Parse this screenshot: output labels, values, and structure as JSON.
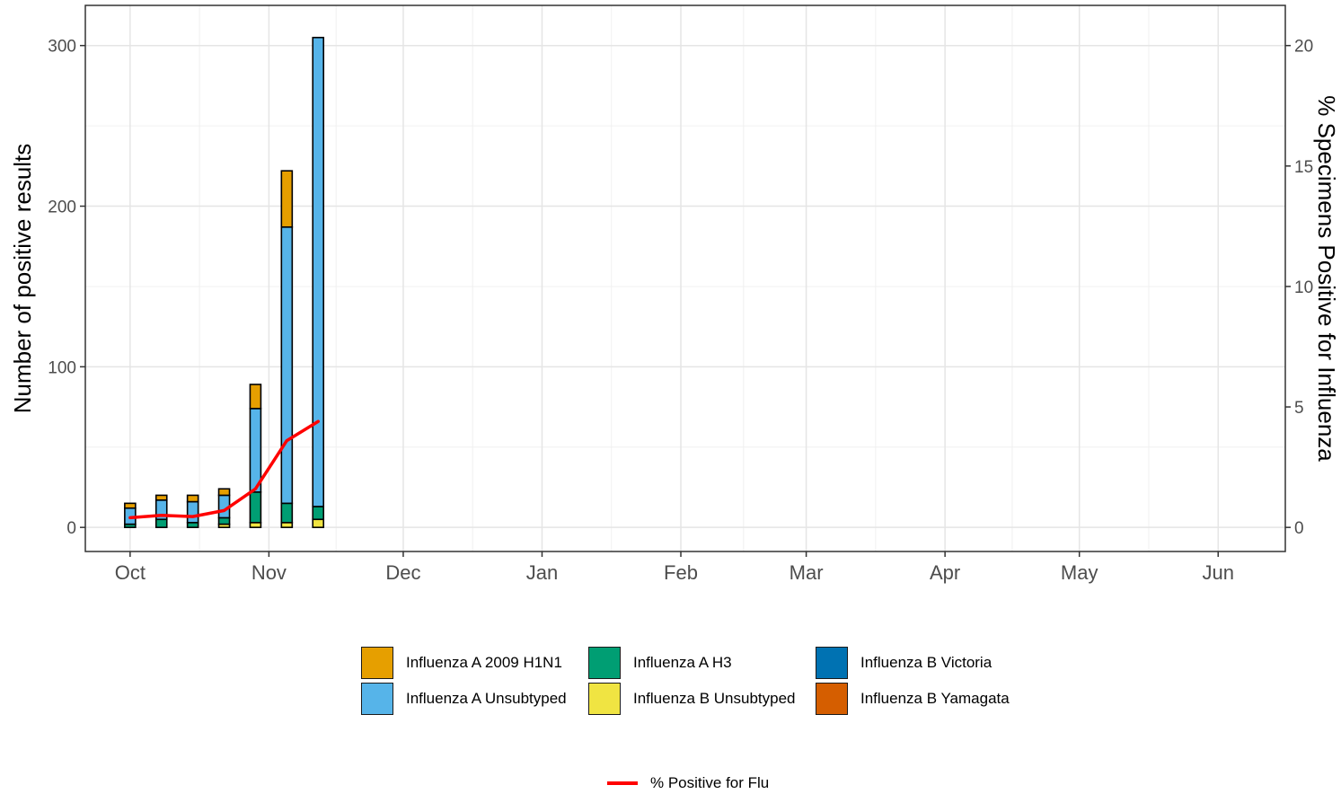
{
  "chart_data": {
    "type": "bar",
    "stacked": true,
    "ylabel": "Number of positive results",
    "y2label": "% Specimens Positive for Influenza",
    "ylim": [
      -15,
      325
    ],
    "y2lim": [
      -1,
      21.667
    ],
    "yticks": [
      0,
      100,
      200,
      300
    ],
    "y2ticks": [
      0,
      5,
      10,
      15,
      20
    ],
    "xlim": [
      -10,
      258
    ],
    "xticks": [
      {
        "label": "Oct",
        "day": 0
      },
      {
        "label": "Nov",
        "day": 31
      },
      {
        "label": "Dec",
        "day": 61
      },
      {
        "label": "Jan",
        "day": 92
      },
      {
        "label": "Feb",
        "day": 123
      },
      {
        "label": "Mar",
        "day": 151
      },
      {
        "label": "Apr",
        "day": 182
      },
      {
        "label": "May",
        "day": 212
      },
      {
        "label": "Jun",
        "day": 243
      }
    ],
    "categories": [
      "Oct 1",
      "Oct 8",
      "Oct 15",
      "Oct 22",
      "Oct 29",
      "Nov 5",
      "Nov 12"
    ],
    "bar_days": [
      0,
      7,
      14,
      21,
      28,
      35,
      42
    ],
    "series": [
      {
        "name": "Influenza B Unsubtyped",
        "color": "#F0E442",
        "values": [
          0,
          0,
          0,
          2,
          3,
          3,
          5
        ]
      },
      {
        "name": "Influenza A H3",
        "color": "#009E73",
        "values": [
          2,
          5,
          3,
          4,
          19,
          12,
          8
        ]
      },
      {
        "name": "Influenza A Unsubtyped",
        "color": "#56B4E9",
        "values": [
          10,
          12,
          13,
          14,
          52,
          172,
          292
        ]
      },
      {
        "name": "Influenza A 2009 H1N1",
        "color": "#E69F00",
        "values": [
          3,
          3,
          4,
          4,
          15,
          35,
          0
        ]
      },
      {
        "name": "Influenza B Victoria",
        "color": "#0072B2",
        "values": [
          0,
          0,
          0,
          0,
          0,
          0,
          0
        ]
      },
      {
        "name": "Influenza B Yamagata",
        "color": "#D55E00",
        "values": [
          0,
          0,
          0,
          0,
          0,
          0,
          0
        ]
      }
    ],
    "line": {
      "name": "% Positive for Flu",
      "color": "#ff0000",
      "x_days": [
        0,
        7,
        14,
        21,
        28,
        35,
        42
      ],
      "values": [
        0.4,
        0.5,
        0.45,
        0.7,
        1.6,
        3.6,
        4.4
      ]
    },
    "grid": true,
    "legend_position": "bottom"
  },
  "legend": {
    "items": [
      {
        "label": "Influenza A 2009 H1N1",
        "color": "#E69F00"
      },
      {
        "label": "Influenza A H3",
        "color": "#009E73"
      },
      {
        "label": "Influenza B Victoria",
        "color": "#0072B2"
      },
      {
        "label": "Influenza A Unsubtyped",
        "color": "#56B4E9"
      },
      {
        "label": "Influenza B Unsubtyped",
        "color": "#F0E442"
      },
      {
        "label": "Influenza B Yamagata",
        "color": "#D55E00"
      }
    ],
    "line_label": "% Positive for Flu"
  }
}
